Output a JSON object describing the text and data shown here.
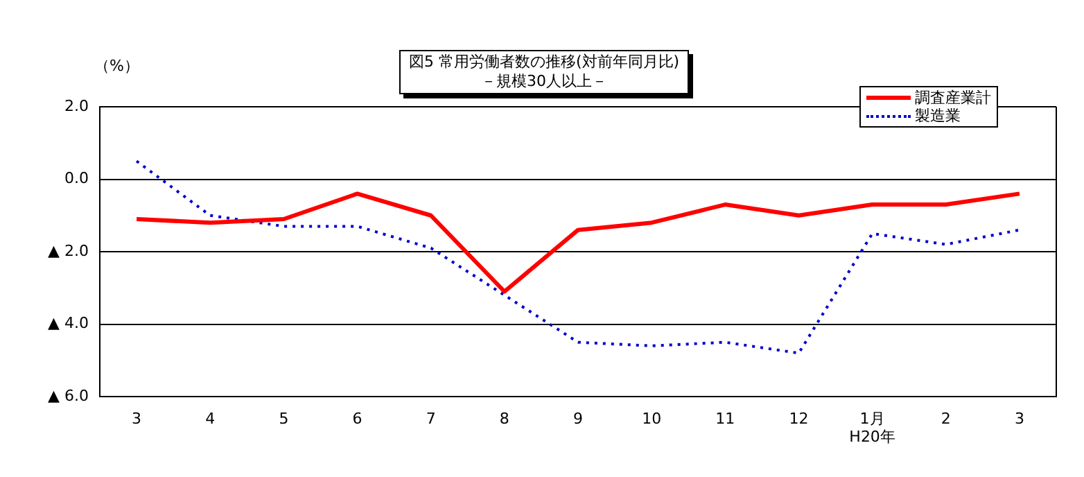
{
  "chart_data": {
    "type": "line",
    "title": "図5  常用労働者数の推移(対前年同月比)",
    "subtitle": "－規模30人以上－",
    "ylabel": "（%）",
    "categories": [
      "3",
      "4",
      "5",
      "6",
      "7",
      "8",
      "9",
      "10",
      "11",
      "12",
      "1月\nH20年",
      "2",
      "3"
    ],
    "series": [
      {
        "name": "調査産業計",
        "color": "#ff0000",
        "line_style": "solid",
        "values": [
          -1.1,
          -1.2,
          -1.1,
          -0.4,
          -1.0,
          -3.1,
          -1.4,
          -1.2,
          -0.7,
          -1.0,
          -0.7,
          -0.7,
          -0.4
        ]
      },
      {
        "name": "製造業",
        "color": "#0000cc",
        "line_style": "dotted",
        "values": [
          0.5,
          -1.0,
          -1.3,
          -1.3,
          -1.9,
          -3.2,
          -4.5,
          -4.6,
          -4.5,
          -4.8,
          -1.5,
          -1.8,
          -1.4
        ]
      }
    ],
    "ylim": [
      -6,
      2
    ],
    "yticks": [
      {
        "value": 2,
        "label": "2.0"
      },
      {
        "value": 0,
        "label": "0.0"
      },
      {
        "value": -2,
        "label": "▲ 2.0"
      },
      {
        "value": -4,
        "label": "▲ 4.0"
      },
      {
        "value": -6,
        "label": "▲ 6.0"
      }
    ],
    "grid": "y",
    "legend": "top right",
    "marker": "none"
  }
}
